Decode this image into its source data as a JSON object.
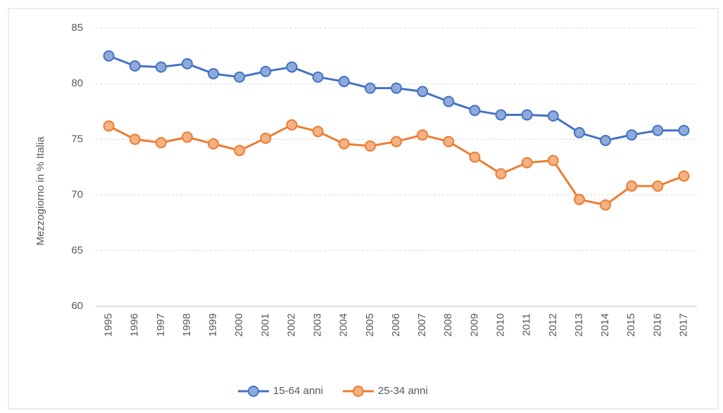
{
  "chart_data": {
    "type": "line",
    "y_label": "Mezzogiorno in % Italia",
    "categories": [
      "1995",
      "1996",
      "1997",
      "1998",
      "1999",
      "2000",
      "2001",
      "2002",
      "2003",
      "2004",
      "2005",
      "2006",
      "2007",
      "2008",
      "2009",
      "2010",
      "2011",
      "2012",
      "2013",
      "2014",
      "2015",
      "2016",
      "2017"
    ],
    "series": [
      {
        "name": "15-64 anni",
        "color": "#4472c4",
        "marker_fill": "#8eaadb",
        "values": [
          82.5,
          81.6,
          81.5,
          81.8,
          80.9,
          80.6,
          81.1,
          81.5,
          80.6,
          80.2,
          79.6,
          79.6,
          79.3,
          78.4,
          77.6,
          77.2,
          77.2,
          77.1,
          75.6,
          74.9,
          75.4,
          75.8,
          75.8
        ]
      },
      {
        "name": "25-34 anni",
        "color": "#ed7d31",
        "marker_fill": "#f4b183",
        "values": [
          76.2,
          75.0,
          74.7,
          75.2,
          74.6,
          74.0,
          75.1,
          76.3,
          75.7,
          74.6,
          74.4,
          74.8,
          75.4,
          74.8,
          73.4,
          71.9,
          72.9,
          73.1,
          69.6,
          69.1,
          70.8,
          70.8,
          71.7
        ]
      }
    ],
    "ylim": [
      60,
      85
    ],
    "yticks": [
      60,
      65,
      70,
      75,
      80,
      85
    ],
    "grid": true,
    "legend": "bottom"
  }
}
